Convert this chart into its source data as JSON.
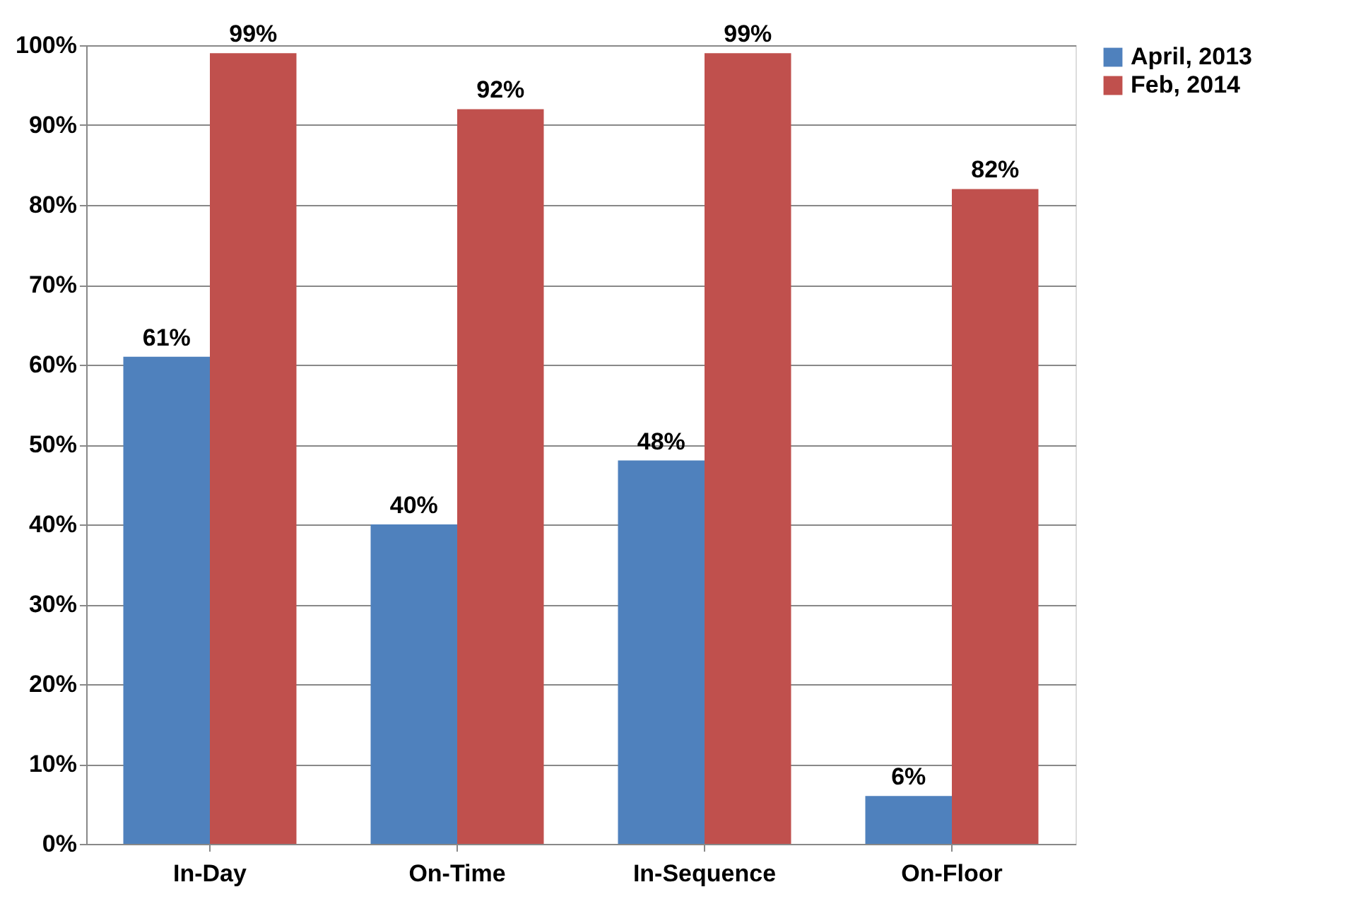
{
  "chart_data": {
    "type": "bar",
    "categories": [
      "In-Day",
      "On-Time",
      "In-Sequence",
      "On-Floor"
    ],
    "series": [
      {
        "name": "April, 2013",
        "color": "#4f81bd",
        "values": [
          61,
          40,
          48,
          6
        ],
        "value_labels": [
          "61%",
          "40%",
          "48%",
          "6%"
        ]
      },
      {
        "name": "Feb, 2014",
        "color": "#c0504d",
        "values": [
          99,
          92,
          99,
          82
        ],
        "value_labels": [
          "99%",
          "92%",
          "99%",
          "82%"
        ]
      }
    ],
    "ylim": [
      0,
      100
    ],
    "yticks": [
      {
        "value": 0,
        "label": "0%"
      },
      {
        "value": 10,
        "label": "10%"
      },
      {
        "value": 20,
        "label": "20%"
      },
      {
        "value": 30,
        "label": "30%"
      },
      {
        "value": 40,
        "label": "40%"
      },
      {
        "value": 50,
        "label": "50%"
      },
      {
        "value": 60,
        "label": "60%"
      },
      {
        "value": 70,
        "label": "70%"
      },
      {
        "value": 80,
        "label": "80%"
      },
      {
        "value": 90,
        "label": "90%"
      },
      {
        "value": 100,
        "label": "100%"
      }
    ],
    "grid": "y",
    "legend": "right"
  }
}
